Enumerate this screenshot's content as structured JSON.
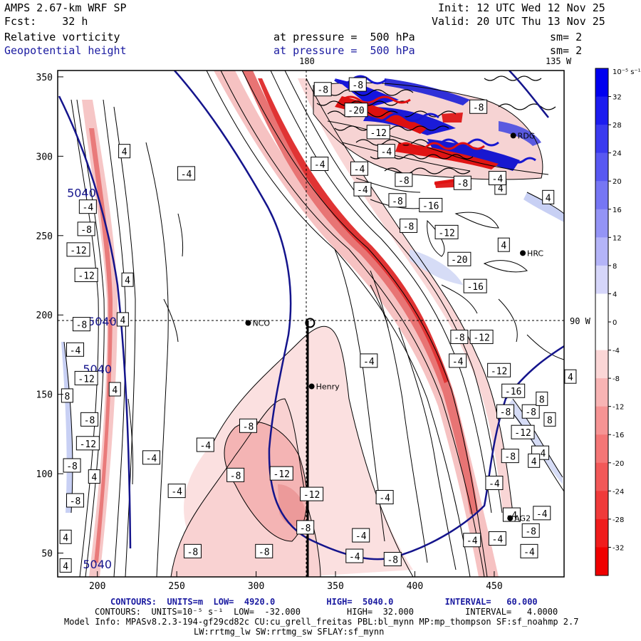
{
  "header": {
    "model": "AMPS 2.67-km WRF SP",
    "fcst": "Fcst:    32 h",
    "init": "Init: 12 UTC Wed 12 Nov 25",
    "valid": "Valid: 20 UTC Thu 13 Nov 25",
    "field1_name": "Relative vorticity",
    "field1_level": "at pressure =  500 hPa",
    "field1_sm": "sm= 2",
    "field2_name": "Geopotential height",
    "field2_level": "at pressure =  500 hPa",
    "field2_sm": "sm= 2"
  },
  "map_labels": {
    "lon_180": "180",
    "lon_135w": "135 W",
    "lon_90w": "90 W",
    "stations": [
      {
        "name": "NCO",
        "gx": 295,
        "gy": 195
      },
      {
        "name": "Henry",
        "gx": 335,
        "gy": 155
      },
      {
        "name": "HRC",
        "gx": 468,
        "gy": 239
      },
      {
        "name": "AG2",
        "gx": 460,
        "gy": 72
      },
      {
        "name": "RDG",
        "gx": 462,
        "gy": 313
      }
    ],
    "center_point": {
      "gx": 334,
      "gy": 195
    }
  },
  "axes": {
    "x_ticks": [
      "200",
      "250",
      "300",
      "350",
      "400",
      "450"
    ],
    "y_ticks": [
      "50",
      "100",
      "150",
      "200",
      "250",
      "300",
      "350"
    ]
  },
  "colorbar": {
    "unit": "10⁻⁵ s⁻¹",
    "labels": [
      "32",
      "28",
      "24",
      "20",
      "16",
      "12",
      "8",
      "4",
      "0",
      "-4",
      "-8",
      "-12",
      "-16",
      "-20",
      "-24",
      "-28",
      "-32"
    ]
  },
  "height_labels": [
    {
      "text": "5040",
      "gx": 190,
      "gy": 277
    },
    {
      "text": "5040",
      "gx": 203,
      "gy": 196
    },
    {
      "text": "5040",
      "gx": 200,
      "gy": 166
    },
    {
      "text": "5040",
      "gx": 200,
      "gy": 43
    }
  ],
  "vort_labels": [
    {
      "t": "-8",
      "gx": 342,
      "gy": 342
    },
    {
      "t": "-8",
      "gx": 364,
      "gy": 345
    },
    {
      "t": "-20",
      "gx": 363,
      "gy": 329
    },
    {
      "t": "-12",
      "gx": 377,
      "gy": 315
    },
    {
      "t": "-4",
      "gx": 382,
      "gy": 303
    },
    {
      "t": "-4",
      "gx": 340,
      "gy": 295
    },
    {
      "t": "-4",
      "gx": 256,
      "gy": 289
    },
    {
      "t": "-4",
      "gx": 365,
      "gy": 292
    },
    {
      "t": "-8",
      "gx": 393,
      "gy": 285
    },
    {
      "t": "-4",
      "gx": 367,
      "gy": 279
    },
    {
      "t": "-8",
      "gx": 389,
      "gy": 272
    },
    {
      "t": "-16",
      "gx": 410,
      "gy": 269
    },
    {
      "t": "-8",
      "gx": 396,
      "gy": 256
    },
    {
      "t": "-12",
      "gx": 420,
      "gy": 252
    },
    {
      "t": "-20",
      "gx": 428,
      "gy": 235
    },
    {
      "t": "-16",
      "gx": 438,
      "gy": 218
    },
    {
      "t": "-8",
      "gx": 428,
      "gy": 186
    },
    {
      "t": "-12",
      "gx": 442,
      "gy": 186
    },
    {
      "t": "-4",
      "gx": 427,
      "gy": 171
    },
    {
      "t": "-12",
      "gx": 453,
      "gy": 165
    },
    {
      "t": "-16",
      "gx": 462,
      "gy": 152
    },
    {
      "t": "-8",
      "gx": 457,
      "gy": 139
    },
    {
      "t": "-8",
      "gx": 473,
      "gy": 139
    },
    {
      "t": "-12",
      "gx": 468,
      "gy": 126
    },
    {
      "t": "-8",
      "gx": 460,
      "gy": 111
    },
    {
      "t": "-4",
      "gx": 479,
      "gy": 113
    },
    {
      "t": "-4",
      "gx": 450,
      "gy": 94
    },
    {
      "t": "-4",
      "gx": 461,
      "gy": 74
    },
    {
      "t": "-8",
      "gx": 473,
      "gy": 64
    },
    {
      "t": "-4",
      "gx": 472,
      "gy": 51
    },
    {
      "t": "-4",
      "gx": 381,
      "gy": 85
    },
    {
      "t": "-4",
      "gx": 366,
      "gy": 61
    },
    {
      "t": "-4",
      "gx": 362,
      "gy": 48
    },
    {
      "t": "-8",
      "gx": 386,
      "gy": 46
    },
    {
      "t": "-4",
      "gx": 436,
      "gy": 58
    },
    {
      "t": "-4",
      "gx": 452,
      "gy": 59
    },
    {
      "t": "-4",
      "gx": 371,
      "gy": 171
    },
    {
      "t": "-8",
      "gx": 295,
      "gy": 130
    },
    {
      "t": "-4",
      "gx": 268,
      "gy": 118
    },
    {
      "t": "-4",
      "gx": 234,
      "gy": 110
    },
    {
      "t": "-4",
      "gx": 250,
      "gy": 89
    },
    {
      "t": "-8",
      "gx": 287,
      "gy": 99
    },
    {
      "t": "-12",
      "gx": 316,
      "gy": 100
    },
    {
      "t": "-12",
      "gx": 335,
      "gy": 87
    },
    {
      "t": "-8",
      "gx": 331,
      "gy": 66
    },
    {
      "t": "-8",
      "gx": 305,
      "gy": 51
    },
    {
      "t": "-8",
      "gx": 260,
      "gy": 51
    },
    {
      "t": "-4",
      "gx": 194,
      "gy": 268
    },
    {
      "t": "-8",
      "gx": 193,
      "gy": 254
    },
    {
      "t": "-12",
      "gx": 188,
      "gy": 241
    },
    {
      "t": "-12",
      "gx": 193,
      "gy": 225
    },
    {
      "t": "-8",
      "gx": 190,
      "gy": 194
    },
    {
      "t": "-4",
      "gx": 186,
      "gy": 178
    },
    {
      "t": "-12",
      "gx": 193,
      "gy": 160
    },
    {
      "t": "-8",
      "gx": 195,
      "gy": 134
    },
    {
      "t": "-12",
      "gx": 194,
      "gy": 119
    },
    {
      "t": "-8",
      "gx": 184,
      "gy": 105
    },
    {
      "t": "-8",
      "gx": 186,
      "gy": 83
    },
    {
      "t": "4",
      "gx": 217,
      "gy": 303
    },
    {
      "t": "4",
      "gx": 219,
      "gy": 222
    },
    {
      "t": "4",
      "gx": 216,
      "gy": 197
    },
    {
      "t": "4",
      "gx": 211,
      "gy": 153
    },
    {
      "t": "8",
      "gx": 181,
      "gy": 149
    },
    {
      "t": "4",
      "gx": 198,
      "gy": 98
    },
    {
      "t": "4",
      "gx": 180,
      "gy": 60
    },
    {
      "t": "4",
      "gx": 180,
      "gy": 42
    },
    {
      "t": "4",
      "gx": 456,
      "gy": 244
    },
    {
      "t": "4",
      "gx": 454,
      "gy": 280
    },
    {
      "t": "4",
      "gx": 484,
      "gy": 274
    },
    {
      "t": "8",
      "gx": 480,
      "gy": 147
    },
    {
      "t": "8",
      "gx": 485,
      "gy": 134
    },
    {
      "t": "4",
      "gx": 498,
      "gy": 161
    },
    {
      "t": "4",
      "gx": 475,
      "gy": 108
    },
    {
      "t": "-4",
      "gx": 480,
      "gy": 75
    },
    {
      "t": "-8",
      "gx": 440,
      "gy": 331
    },
    {
      "t": "-4",
      "gx": 452,
      "gy": 286
    },
    {
      "t": "-8",
      "gx": 430,
      "gy": 283
    }
  ],
  "footer": {
    "line1": "CONTOURS:  UNITS=m  LOW=  4920.0          HIGH=  5040.0          INTERVAL=   60.000",
    "line2": "CONTOURS:  UNITS=10⁻⁵ s⁻¹  LOW=  -32.000         HIGH=  32.000          INTERVAL=   4.0000",
    "line3": "Model Info: MPASv8.2.3-194-gf29cd82c CU:cu_grell_freitas PBL:bl_mynn MP:mp_thompson SF:sf_noahmp 2.7",
    "line4": "LW:rrtmg_lw SW:rrtmg_sw SFLAY:sf_mynn"
  }
}
